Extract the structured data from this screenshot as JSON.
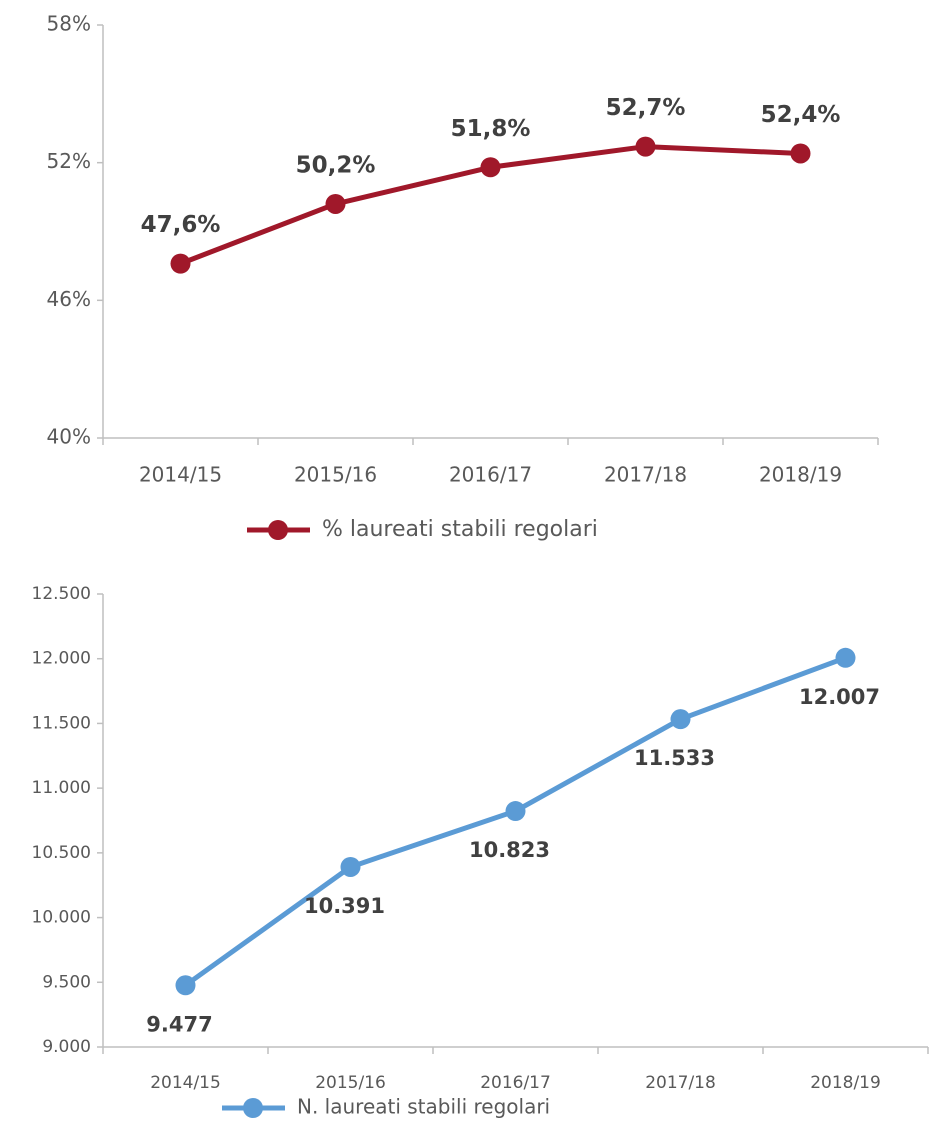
{
  "chart_data": [
    {
      "type": "line",
      "categories": [
        "2014/15",
        "2015/16",
        "2016/17",
        "2017/18",
        "2018/19"
      ],
      "series": [
        {
          "name": "% laureati stabili regolari",
          "color": "#a0182a",
          "values": [
            47.6,
            50.2,
            51.8,
            52.7,
            52.4
          ],
          "value_labels": [
            "47,6%",
            "50,2%",
            "51,8%",
            "52,7%",
            "52,4%"
          ]
        }
      ],
      "ylim": [
        40,
        58
      ],
      "yticks": [
        {
          "value": 40,
          "label": "40%"
        },
        {
          "value": 46,
          "label": "46%"
        },
        {
          "value": 52,
          "label": "52%"
        },
        {
          "value": 58,
          "label": "58%"
        }
      ],
      "grid": false
    },
    {
      "type": "line",
      "categories": [
        "2014/15",
        "2015/16",
        "2016/17",
        "2017/18",
        "2018/19"
      ],
      "series": [
        {
          "name": "N. laureati stabili regolari",
          "color": "#5b9bd5",
          "values": [
            9477,
            10391,
            10823,
            11533,
            12007
          ],
          "value_labels": [
            "9.477",
            "10.391",
            "10.823",
            "11.533",
            "12.007"
          ]
        }
      ],
      "ylim": [
        9000,
        12500
      ],
      "yticks": [
        {
          "value": 9000,
          "label": "9.000"
        },
        {
          "value": 9500,
          "label": "9.500"
        },
        {
          "value": 10000,
          "label": "10.000"
        },
        {
          "value": 10500,
          "label": "10.500"
        },
        {
          "value": 11000,
          "label": "11.000"
        },
        {
          "value": 11500,
          "label": "11.500"
        },
        {
          "value": 12000,
          "label": "12.000"
        },
        {
          "value": 12500,
          "label": "12.500"
        }
      ],
      "grid": false
    }
  ]
}
